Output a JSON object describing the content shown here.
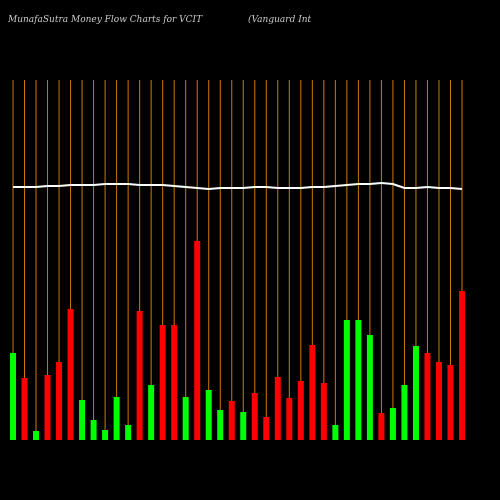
{
  "chart_data": {
    "type": "bar",
    "title": "MunafaSutra  Money Flow  Charts for VCIT",
    "subtitle": "(Vanguard Int",
    "ylim": [
      0,
      360
    ],
    "y2lim": [
      0,
      360
    ],
    "gridlines": "#cc7a00",
    "series": [
      {
        "name": "Money Flow",
        "values": [
          87,
          62,
          9,
          65,
          78,
          131,
          40,
          20,
          10,
          43,
          15,
          129,
          55,
          115,
          115,
          43,
          199,
          50,
          30,
          39,
          28,
          47,
          23,
          63,
          42,
          59,
          95,
          57,
          15,
          120,
          120,
          105,
          27,
          32,
          55,
          94,
          87,
          78,
          75,
          149
        ],
        "colors": [
          "#00ff00",
          "#ff0000",
          "#00ff00",
          "#ff0000",
          "#ff0000",
          "#ff0000",
          "#00ff00",
          "#00ff00",
          "#00ff00",
          "#00ff00",
          "#00ff00",
          "#ff0000",
          "#00ff00",
          "#ff0000",
          "#ff0000",
          "#00ff00",
          "#ff0000",
          "#00ff00",
          "#00ff00",
          "#ff0000",
          "#00ff00",
          "#ff0000",
          "#ff0000",
          "#ff0000",
          "#ff0000",
          "#ff0000",
          "#ff0000",
          "#ff0000",
          "#00ff00",
          "#00ff00",
          "#00ff00",
          "#00ff00",
          "#ff0000",
          "#00ff00",
          "#00ff00",
          "#00ff00",
          "#ff0000",
          "#ff0000",
          "#ff0000",
          "#ff0000"
        ]
      },
      {
        "name": "Price",
        "axis": "y2",
        "color": "#ffffff",
        "values": [
          253,
          253,
          253,
          254,
          254,
          255,
          255,
          255,
          256,
          256,
          256,
          255,
          255,
          255,
          254,
          253,
          252,
          251,
          252,
          252,
          252,
          253,
          253,
          252,
          252,
          252,
          253,
          253,
          254,
          255,
          256,
          256,
          257,
          256,
          252,
          252,
          253,
          252,
          252,
          251
        ]
      }
    ]
  }
}
